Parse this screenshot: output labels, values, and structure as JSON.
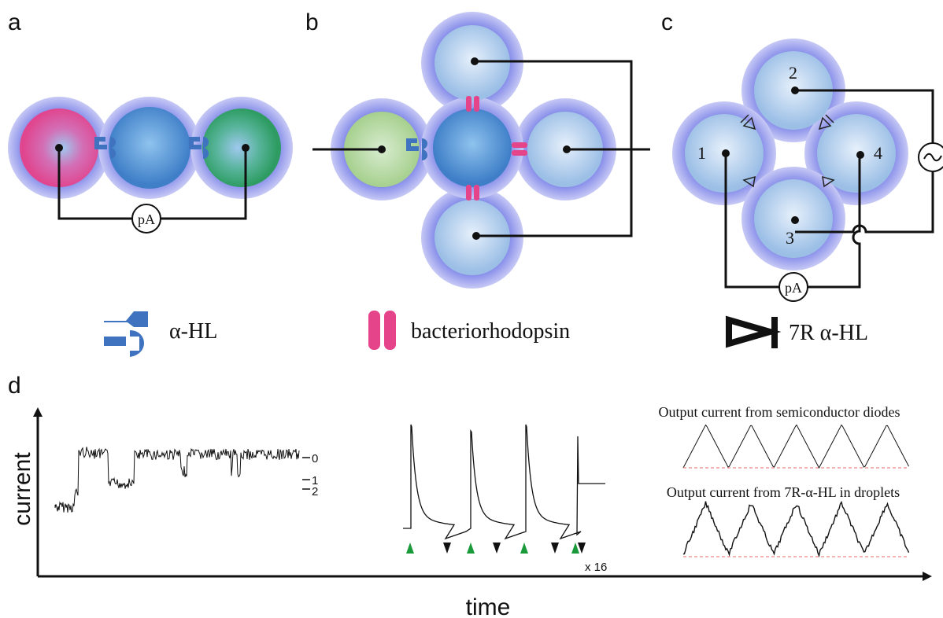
{
  "panels": {
    "a": {
      "label": "a",
      "meter": "pA"
    },
    "b": {
      "label": "b"
    },
    "c": {
      "label": "c",
      "droplets": [
        "1",
        "2",
        "3",
        "4"
      ],
      "meter": "pA"
    },
    "d": {
      "label": "d",
      "y_axis": "current",
      "x_axis": "time",
      "levels": [
        "0",
        "1",
        "2"
      ],
      "multiplier": "x 16",
      "top_caption": "Output current from semiconductor diodes",
      "bottom_caption": "Output current from 7R-α-HL in droplets"
    }
  },
  "legend": [
    "α-HL",
    "bacteriorhodopsin",
    "7R α-HL"
  ]
}
